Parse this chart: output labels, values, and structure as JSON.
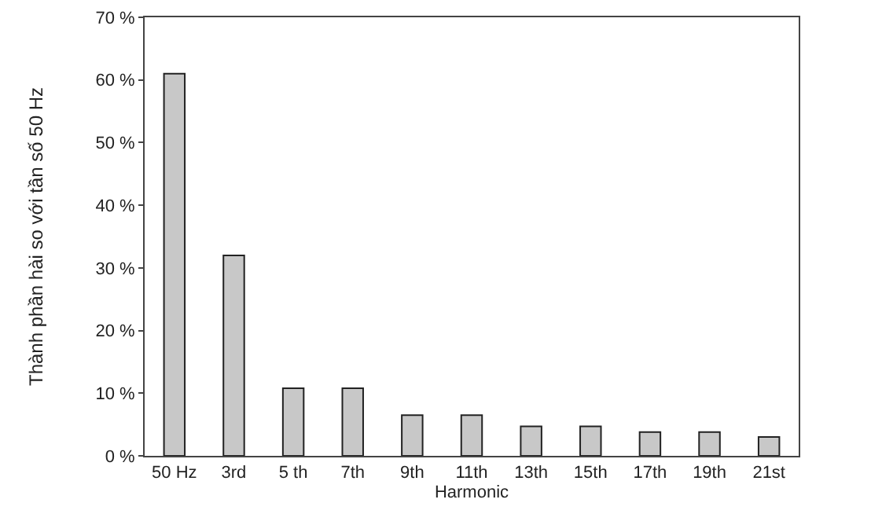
{
  "chart_data": {
    "type": "bar",
    "categories": [
      "50 Hz",
      "3rd",
      "5 th",
      "7th",
      "9th",
      "11th",
      "13th",
      "15th",
      "17th",
      "19th",
      "21st"
    ],
    "values": [
      61,
      32,
      10.8,
      10.8,
      6.5,
      6.5,
      4.7,
      4.7,
      3.8,
      3.8,
      3.0
    ],
    "color": "#c8c8c8",
    "ylabel": "Thành phần hài so với tần số 50 Hz",
    "xlabel": "Harmonic",
    "ylim": [
      0,
      70
    ],
    "yticks": [
      {
        "value": 0,
        "label": "0 %"
      },
      {
        "value": 10,
        "label": "10 %"
      },
      {
        "value": 20,
        "label": "20 %"
      },
      {
        "value": 30,
        "label": "30 %"
      },
      {
        "value": 40,
        "label": "40 %"
      },
      {
        "value": 50,
        "label": "50 %"
      },
      {
        "value": 60,
        "label": "60 %"
      },
      {
        "value": 70,
        "label": "70 %"
      }
    ],
    "grid": false,
    "legend": false
  }
}
